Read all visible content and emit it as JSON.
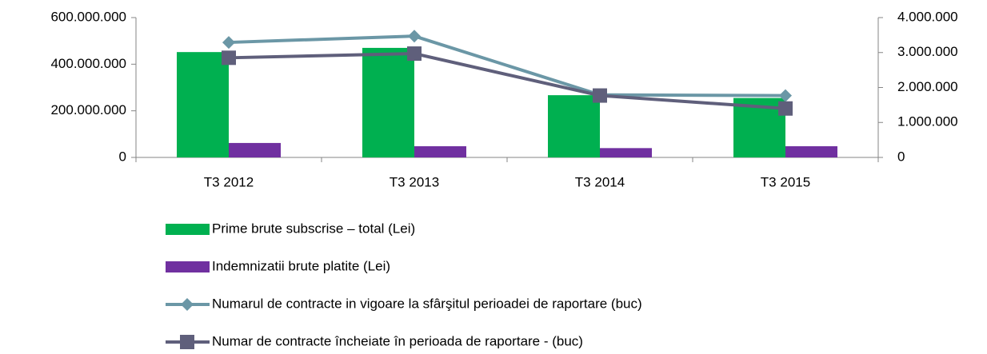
{
  "chart_data": {
    "type": "bar",
    "categories": [
      "T3 2012",
      "T3 2013",
      "T3 2014",
      "T3 2015"
    ],
    "series": [
      {
        "name": "Prime brute subscrise – total (Lei)",
        "type": "bar",
        "color": "#00b050",
        "values": [
          452000000,
          470000000,
          267000000,
          255000000
        ]
      },
      {
        "name": "Indemnizatii brute platite (Lei)",
        "type": "bar",
        "color": "#7030a0",
        "values": [
          62000000,
          48000000,
          40000000,
          48000000
        ]
      },
      {
        "name": "Numarul de contracte in vigoare la sfârşitul perioadei de raportare (buc)",
        "type": "line",
        "marker": "diamond",
        "axis": "y2",
        "color": "#6b97a6",
        "values": [
          3290000,
          3470000,
          1790000,
          1770000
        ]
      },
      {
        "name": "Numar de contracte încheiate în perioada de raportare - (buc)",
        "type": "line",
        "marker": "square",
        "axis": "y2",
        "color": "#5f5f7b",
        "values": [
          2850000,
          2970000,
          1770000,
          1400000
        ]
      }
    ],
    "ylim": [
      0,
      600000000
    ],
    "yticks": [
      0,
      {
        "value": 200000000,
        "label": "200.000.000"
      },
      {
        "value": 400000000,
        "label": "400.000.000"
      },
      {
        "value": 600000000,
        "label": "600.000.000"
      }
    ],
    "y2lim": [
      0,
      4000000
    ],
    "y2ticks": [
      0,
      {
        "value": 1000000,
        "label": "1.000.000"
      },
      {
        "value": 2000000,
        "label": "2.000.000"
      },
      {
        "value": 3000000,
        "label": "3.000.000"
      },
      {
        "value": 4000000,
        "label": "4.000.000"
      }
    ],
    "legend": "bottom"
  }
}
